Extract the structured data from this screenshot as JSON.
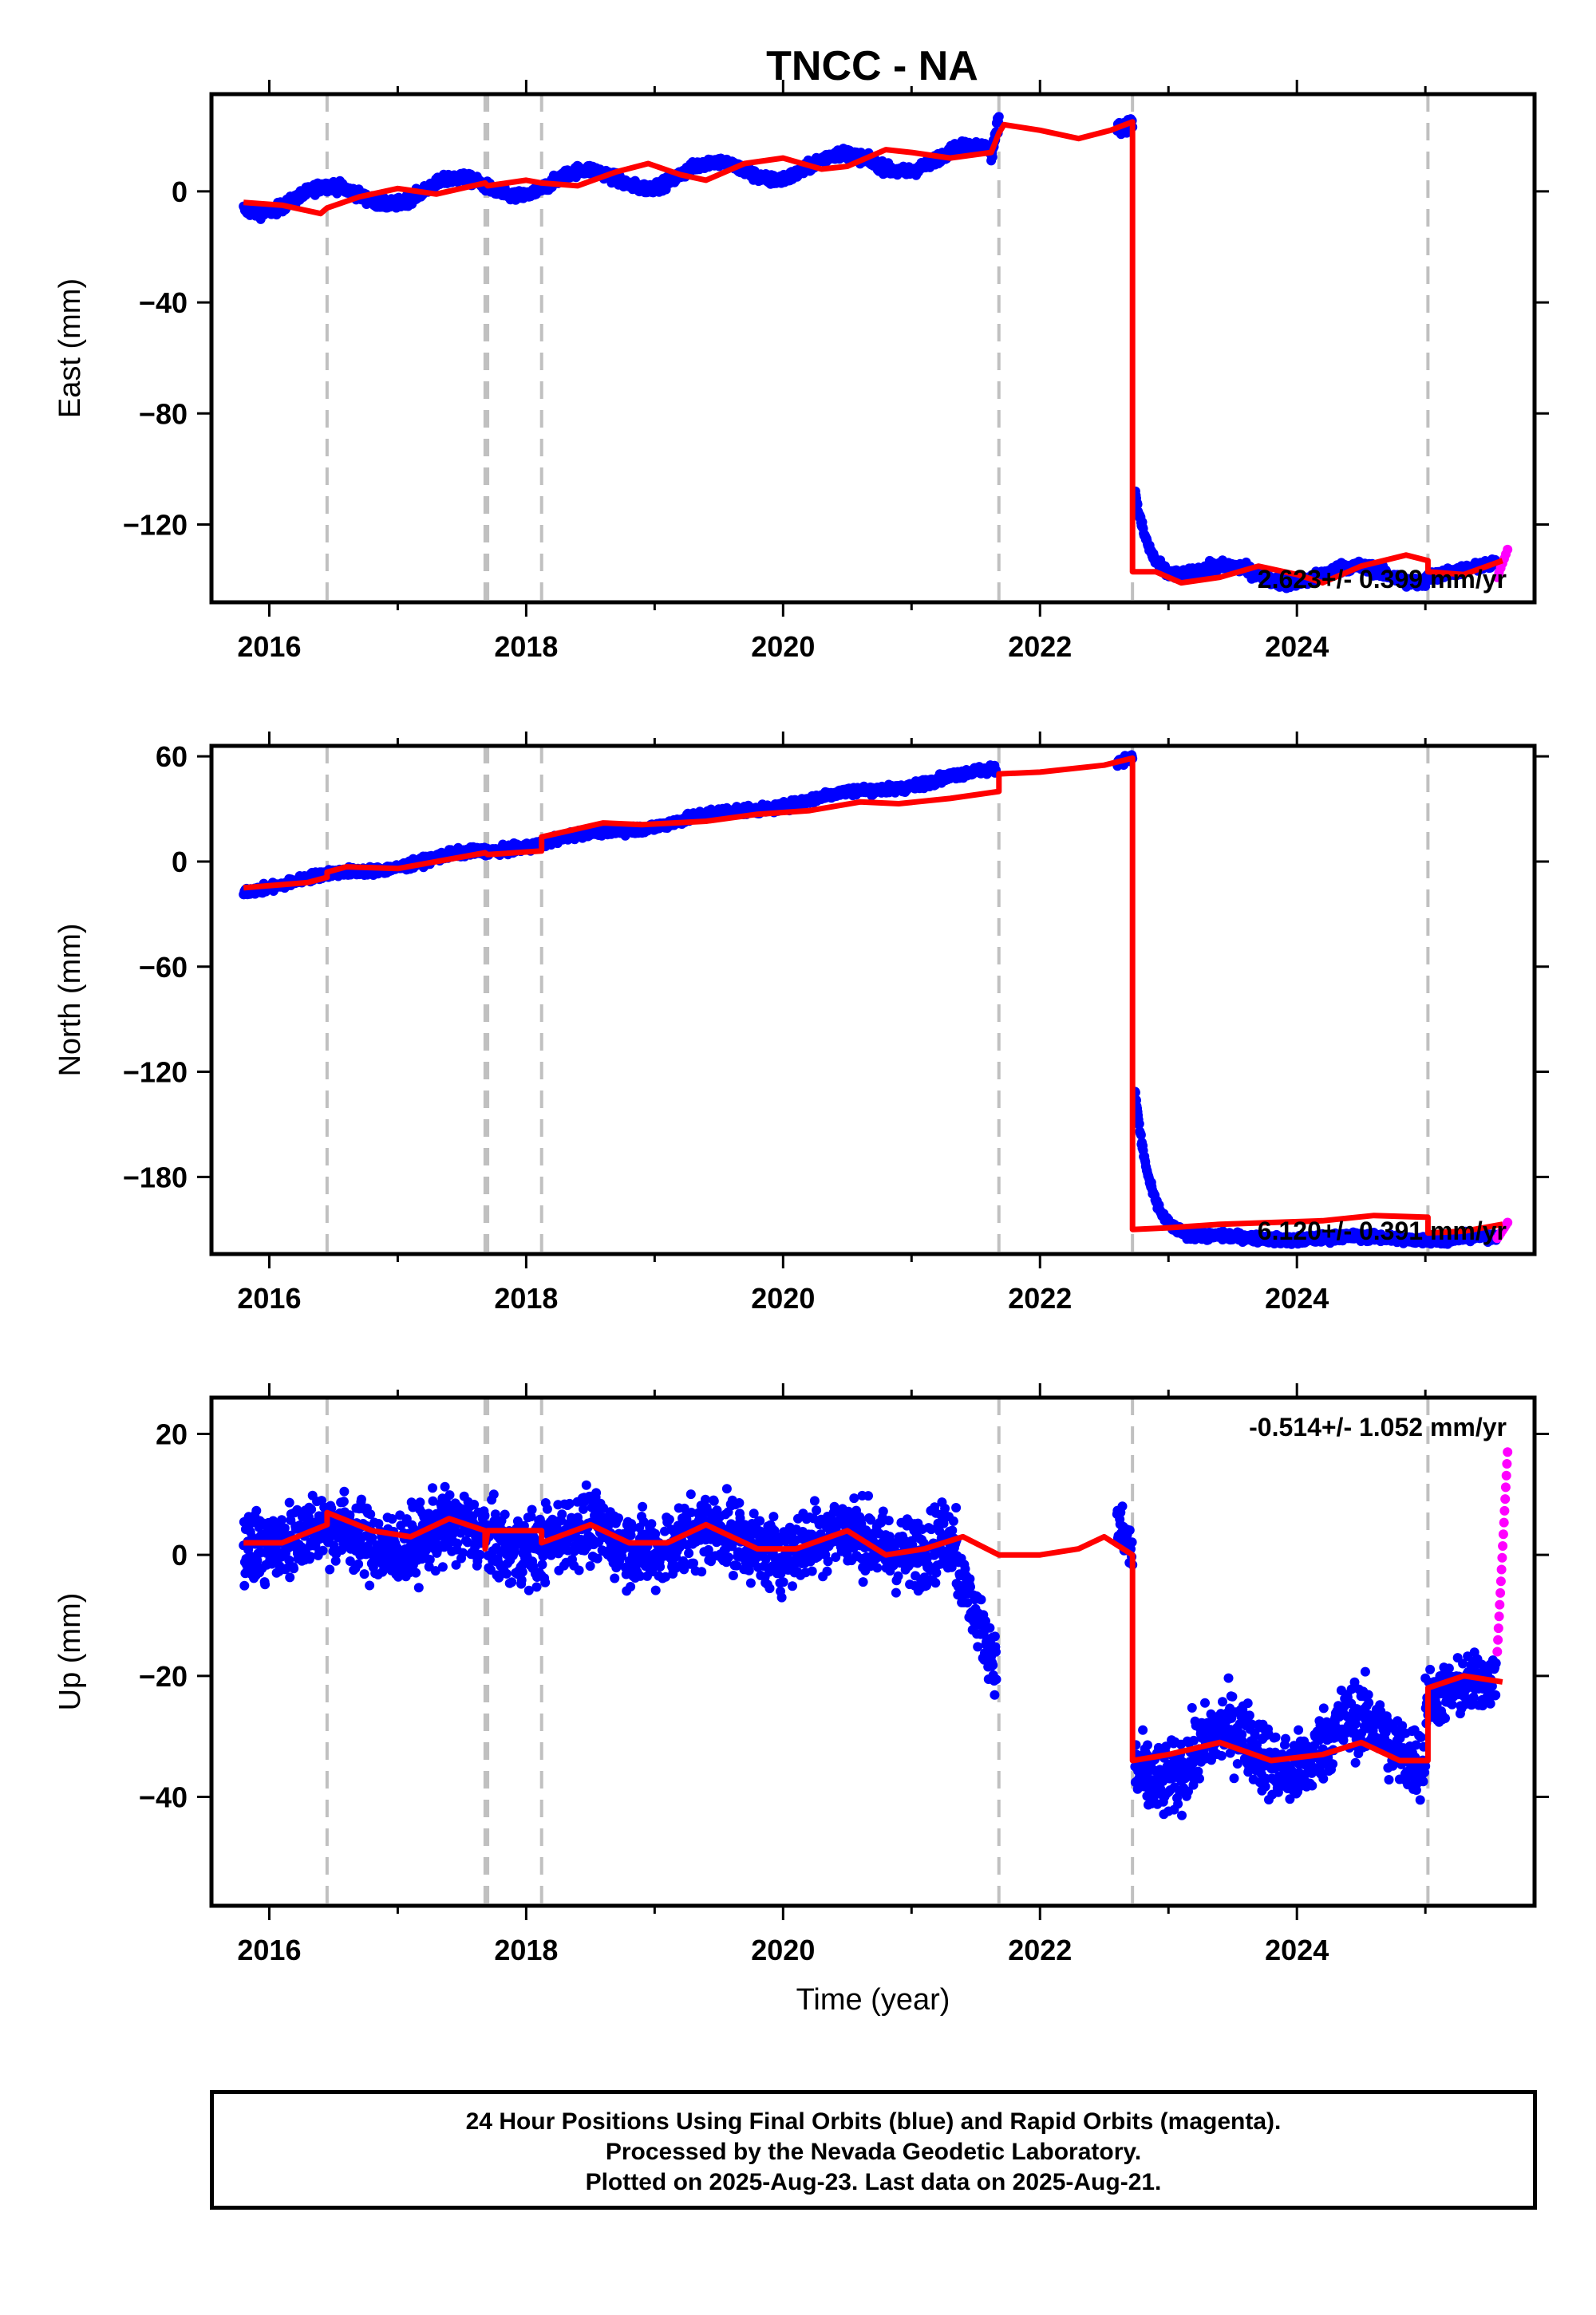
{
  "title": "TNCC - NA",
  "chart_data": [
    {
      "type": "scatter",
      "name": "east",
      "ylabel": "East (mm)",
      "xlabel": "",
      "xlim": [
        2015.55,
        2025.85
      ],
      "ylim": [
        -148,
        35
      ],
      "xticks": [
        2016,
        2018,
        2020,
        2022,
        2024
      ],
      "xtick_labels": [
        "2016",
        "2018",
        "2020",
        "2022",
        "2024"
      ],
      "yticks": [
        0,
        -40,
        -80,
        -120
      ],
      "ytick_labels": [
        "0",
        "−40",
        "−80",
        "−120"
      ],
      "event_lines": [
        2016.45,
        2017.68,
        2017.7,
        2018.12,
        2021.68,
        2022.72,
        2025.02
      ],
      "rate_label": "2.623+/- 0.399 mm/yr",
      "final_points": {
        "segments": [
          {
            "x0": 2015.8,
            "x1": 2021.62,
            "y0": -4,
            "y1": 13,
            "amp": 4,
            "noise": 1.6
          },
          {
            "x0": 2021.62,
            "x1": 2021.68,
            "y0": 13,
            "y1": 26,
            "amp": 0,
            "noise": 3
          },
          {
            "x0": 2022.6,
            "x1": 2022.72,
            "y0": 22,
            "y1": 25,
            "amp": 0,
            "noise": 2
          },
          {
            "x0": 2022.74,
            "x1": 2025.0,
            "y0": -138,
            "y1": -138,
            "amp": 3,
            "noise": 1.6,
            "decay": [
              30,
              0.12
            ]
          },
          {
            "x0": 2025.0,
            "x1": 2025.55,
            "y0": -139,
            "y1": -134,
            "amp": 0,
            "noise": 1.4
          }
        ]
      },
      "rapid_points": {
        "x0": 2025.56,
        "x1": 2025.64,
        "y0": -139,
        "y1": -129,
        "n": 7
      },
      "model": [
        [
          2015.8,
          -4
        ],
        [
          2016.1,
          -5
        ],
        [
          2016.4,
          -8
        ],
        [
          2016.45,
          -6
        ],
        [
          2016.7,
          -2
        ],
        [
          2017.0,
          1
        ],
        [
          2017.3,
          -1
        ],
        [
          2017.68,
          3
        ],
        [
          2017.7,
          2
        ],
        [
          2018.0,
          4
        ],
        [
          2018.12,
          3
        ],
        [
          2018.4,
          2
        ],
        [
          2018.7,
          7
        ],
        [
          2018.95,
          10
        ],
        [
          2019.2,
          6
        ],
        [
          2019.4,
          4
        ],
        [
          2019.7,
          10
        ],
        [
          2020.0,
          12
        ],
        [
          2020.3,
          8
        ],
        [
          2020.5,
          9
        ],
        [
          2020.8,
          15
        ],
        [
          2021.0,
          14
        ],
        [
          2021.3,
          12
        ],
        [
          2021.62,
          14
        ],
        [
          2021.68,
          21
        ],
        [
          2021.72,
          24
        ],
        [
          2022.0,
          22
        ],
        [
          2022.3,
          19
        ],
        [
          2022.55,
          22
        ],
        [
          2022.72,
          25
        ],
        [
          2022.72,
          -137
        ],
        [
          2022.9,
          -137
        ],
        [
          2023.1,
          -141
        ],
        [
          2023.4,
          -139
        ],
        [
          2023.7,
          -135
        ],
        [
          2024.0,
          -138
        ],
        [
          2024.2,
          -141
        ],
        [
          2024.5,
          -135
        ],
        [
          2024.85,
          -131
        ],
        [
          2025.02,
          -133
        ],
        [
          2025.02,
          -137
        ],
        [
          2025.3,
          -138
        ],
        [
          2025.6,
          -133
        ]
      ]
    },
    {
      "type": "scatter",
      "name": "north",
      "ylabel": "North (mm)",
      "xlabel": "",
      "xlim": [
        2015.55,
        2025.85
      ],
      "ylim": [
        -224,
        66
      ],
      "xticks": [
        2016,
        2018,
        2020,
        2022,
        2024
      ],
      "xtick_labels": [
        "2016",
        "2018",
        "2020",
        "2022",
        "2024"
      ],
      "yticks": [
        60,
        0,
        -60,
        -120,
        -180
      ],
      "ytick_labels": [
        "60",
        "0",
        "−60",
        "−120",
        "−180"
      ],
      "event_lines": [
        2016.45,
        2017.68,
        2017.7,
        2018.12,
        2021.68,
        2022.72,
        2025.02
      ],
      "rate_label": "6.120+/- 0.391 mm/yr",
      "final_points": {
        "segments": [
          {
            "x0": 2015.8,
            "x1": 2021.66,
            "y0": -16,
            "y1": 52,
            "amp": 1.5,
            "noise": 2
          },
          {
            "x0": 2022.6,
            "x1": 2022.72,
            "y0": 57,
            "y1": 59,
            "amp": 0,
            "noise": 2
          },
          {
            "x0": 2022.74,
            "x1": 2025.55,
            "y0": -215,
            "y1": -215,
            "amp": 1,
            "noise": 2,
            "decay": [
              85,
              0.12
            ]
          }
        ]
      },
      "rapid_points": {
        "x0": 2025.56,
        "x1": 2025.64,
        "y0": -215,
        "y1": -206,
        "n": 7
      },
      "model": [
        [
          2015.8,
          -15
        ],
        [
          2016.3,
          -12
        ],
        [
          2016.45,
          -9
        ],
        [
          2016.45,
          -6
        ],
        [
          2016.6,
          -3
        ],
        [
          2017.0,
          -4
        ],
        [
          2017.68,
          5
        ],
        [
          2017.7,
          4
        ],
        [
          2018.12,
          6
        ],
        [
          2018.12,
          14
        ],
        [
          2018.6,
          22
        ],
        [
          2018.9,
          21
        ],
        [
          2019.4,
          23
        ],
        [
          2019.8,
          27
        ],
        [
          2020.2,
          29
        ],
        [
          2020.6,
          34
        ],
        [
          2020.9,
          33
        ],
        [
          2021.3,
          36
        ],
        [
          2021.68,
          40
        ],
        [
          2021.68,
          50
        ],
        [
          2022.0,
          51
        ],
        [
          2022.5,
          55
        ],
        [
          2022.72,
          59
        ],
        [
          2022.72,
          -210
        ],
        [
          2023.0,
          -209
        ],
        [
          2023.4,
          -207
        ],
        [
          2023.8,
          -206
        ],
        [
          2024.2,
          -205
        ],
        [
          2024.6,
          -202
        ],
        [
          2025.02,
          -203
        ],
        [
          2025.02,
          -212
        ],
        [
          2025.3,
          -211
        ],
        [
          2025.6,
          -207
        ]
      ]
    },
    {
      "type": "scatter",
      "name": "up",
      "ylabel": "Up (mm)",
      "xlabel": "Time (year)",
      "xlim": [
        2015.55,
        2025.85
      ],
      "ylim": [
        -58,
        26
      ],
      "xticks": [
        2016,
        2018,
        2020,
        2022,
        2024
      ],
      "xtick_labels": [
        "2016",
        "2018",
        "2020",
        "2022",
        "2024"
      ],
      "yticks": [
        20,
        0,
        -20,
        -40
      ],
      "ytick_labels": [
        "20",
        "0",
        "−20",
        "−40"
      ],
      "event_lines": [
        2016.45,
        2017.68,
        2017.7,
        2018.12,
        2021.68,
        2022.72,
        2025.02
      ],
      "rate_label": "-0.514+/- 1.052 mm/yr",
      "final_points": {
        "segments": [
          {
            "x0": 2015.8,
            "x1": 2021.35,
            "y0": 3,
            "y1": 2,
            "amp": 2,
            "noise": 5
          },
          {
            "x0": 2021.35,
            "x1": 2021.66,
            "y0": -2,
            "y1": -18,
            "amp": 0,
            "noise": 4
          },
          {
            "x0": 2022.6,
            "x1": 2022.72,
            "y0": 5,
            "y1": 0,
            "amp": 0,
            "noise": 4
          },
          {
            "x0": 2022.74,
            "x1": 2025.0,
            "y0": -34,
            "y1": -30,
            "amp": 4,
            "noise": 5
          },
          {
            "x0": 2025.0,
            "x1": 2025.55,
            "y0": -24,
            "y1": -20,
            "amp": 0,
            "noise": 4
          }
        ]
      },
      "rapid_points": {
        "x0": 2025.56,
        "x1": 2025.64,
        "y0": -16,
        "y1": 17,
        "n": 18
      },
      "model": [
        [
          2015.8,
          2
        ],
        [
          2016.1,
          2
        ],
        [
          2016.45,
          5
        ],
        [
          2016.45,
          7
        ],
        [
          2016.8,
          4
        ],
        [
          2017.1,
          3
        ],
        [
          2017.4,
          6
        ],
        [
          2017.68,
          4
        ],
        [
          2017.68,
          1
        ],
        [
          2017.7,
          4
        ],
        [
          2018.12,
          4
        ],
        [
          2018.12,
          2
        ],
        [
          2018.5,
          5
        ],
        [
          2018.8,
          2
        ],
        [
          2019.1,
          2
        ],
        [
          2019.4,
          5
        ],
        [
          2019.8,
          1
        ],
        [
          2020.1,
          1
        ],
        [
          2020.5,
          4
        ],
        [
          2020.8,
          0
        ],
        [
          2021.1,
          1
        ],
        [
          2021.4,
          3
        ],
        [
          2021.68,
          0
        ],
        [
          2022.0,
          0
        ],
        [
          2022.3,
          1
        ],
        [
          2022.5,
          3
        ],
        [
          2022.72,
          0
        ],
        [
          2022.72,
          -34
        ],
        [
          2023.0,
          -33
        ],
        [
          2023.4,
          -31
        ],
        [
          2023.8,
          -34
        ],
        [
          2024.2,
          -33
        ],
        [
          2024.5,
          -31
        ],
        [
          2024.8,
          -34
        ],
        [
          2025.02,
          -34
        ],
        [
          2025.02,
          -22
        ],
        [
          2025.3,
          -20
        ],
        [
          2025.6,
          -21
        ]
      ]
    }
  ],
  "footer": {
    "line1": "24 Hour Positions Using Final Orbits (blue) and Rapid Orbits (magenta).",
    "line2": "Processed by the Nevada Geodetic Laboratory.",
    "line3": "Plotted on 2025-Aug-23. Last data on 2025-Aug-21."
  },
  "colors": {
    "final": "#0000ff",
    "rapid": "#ff00ff",
    "model": "#ff0000",
    "event_line": "#c0c0c0"
  }
}
